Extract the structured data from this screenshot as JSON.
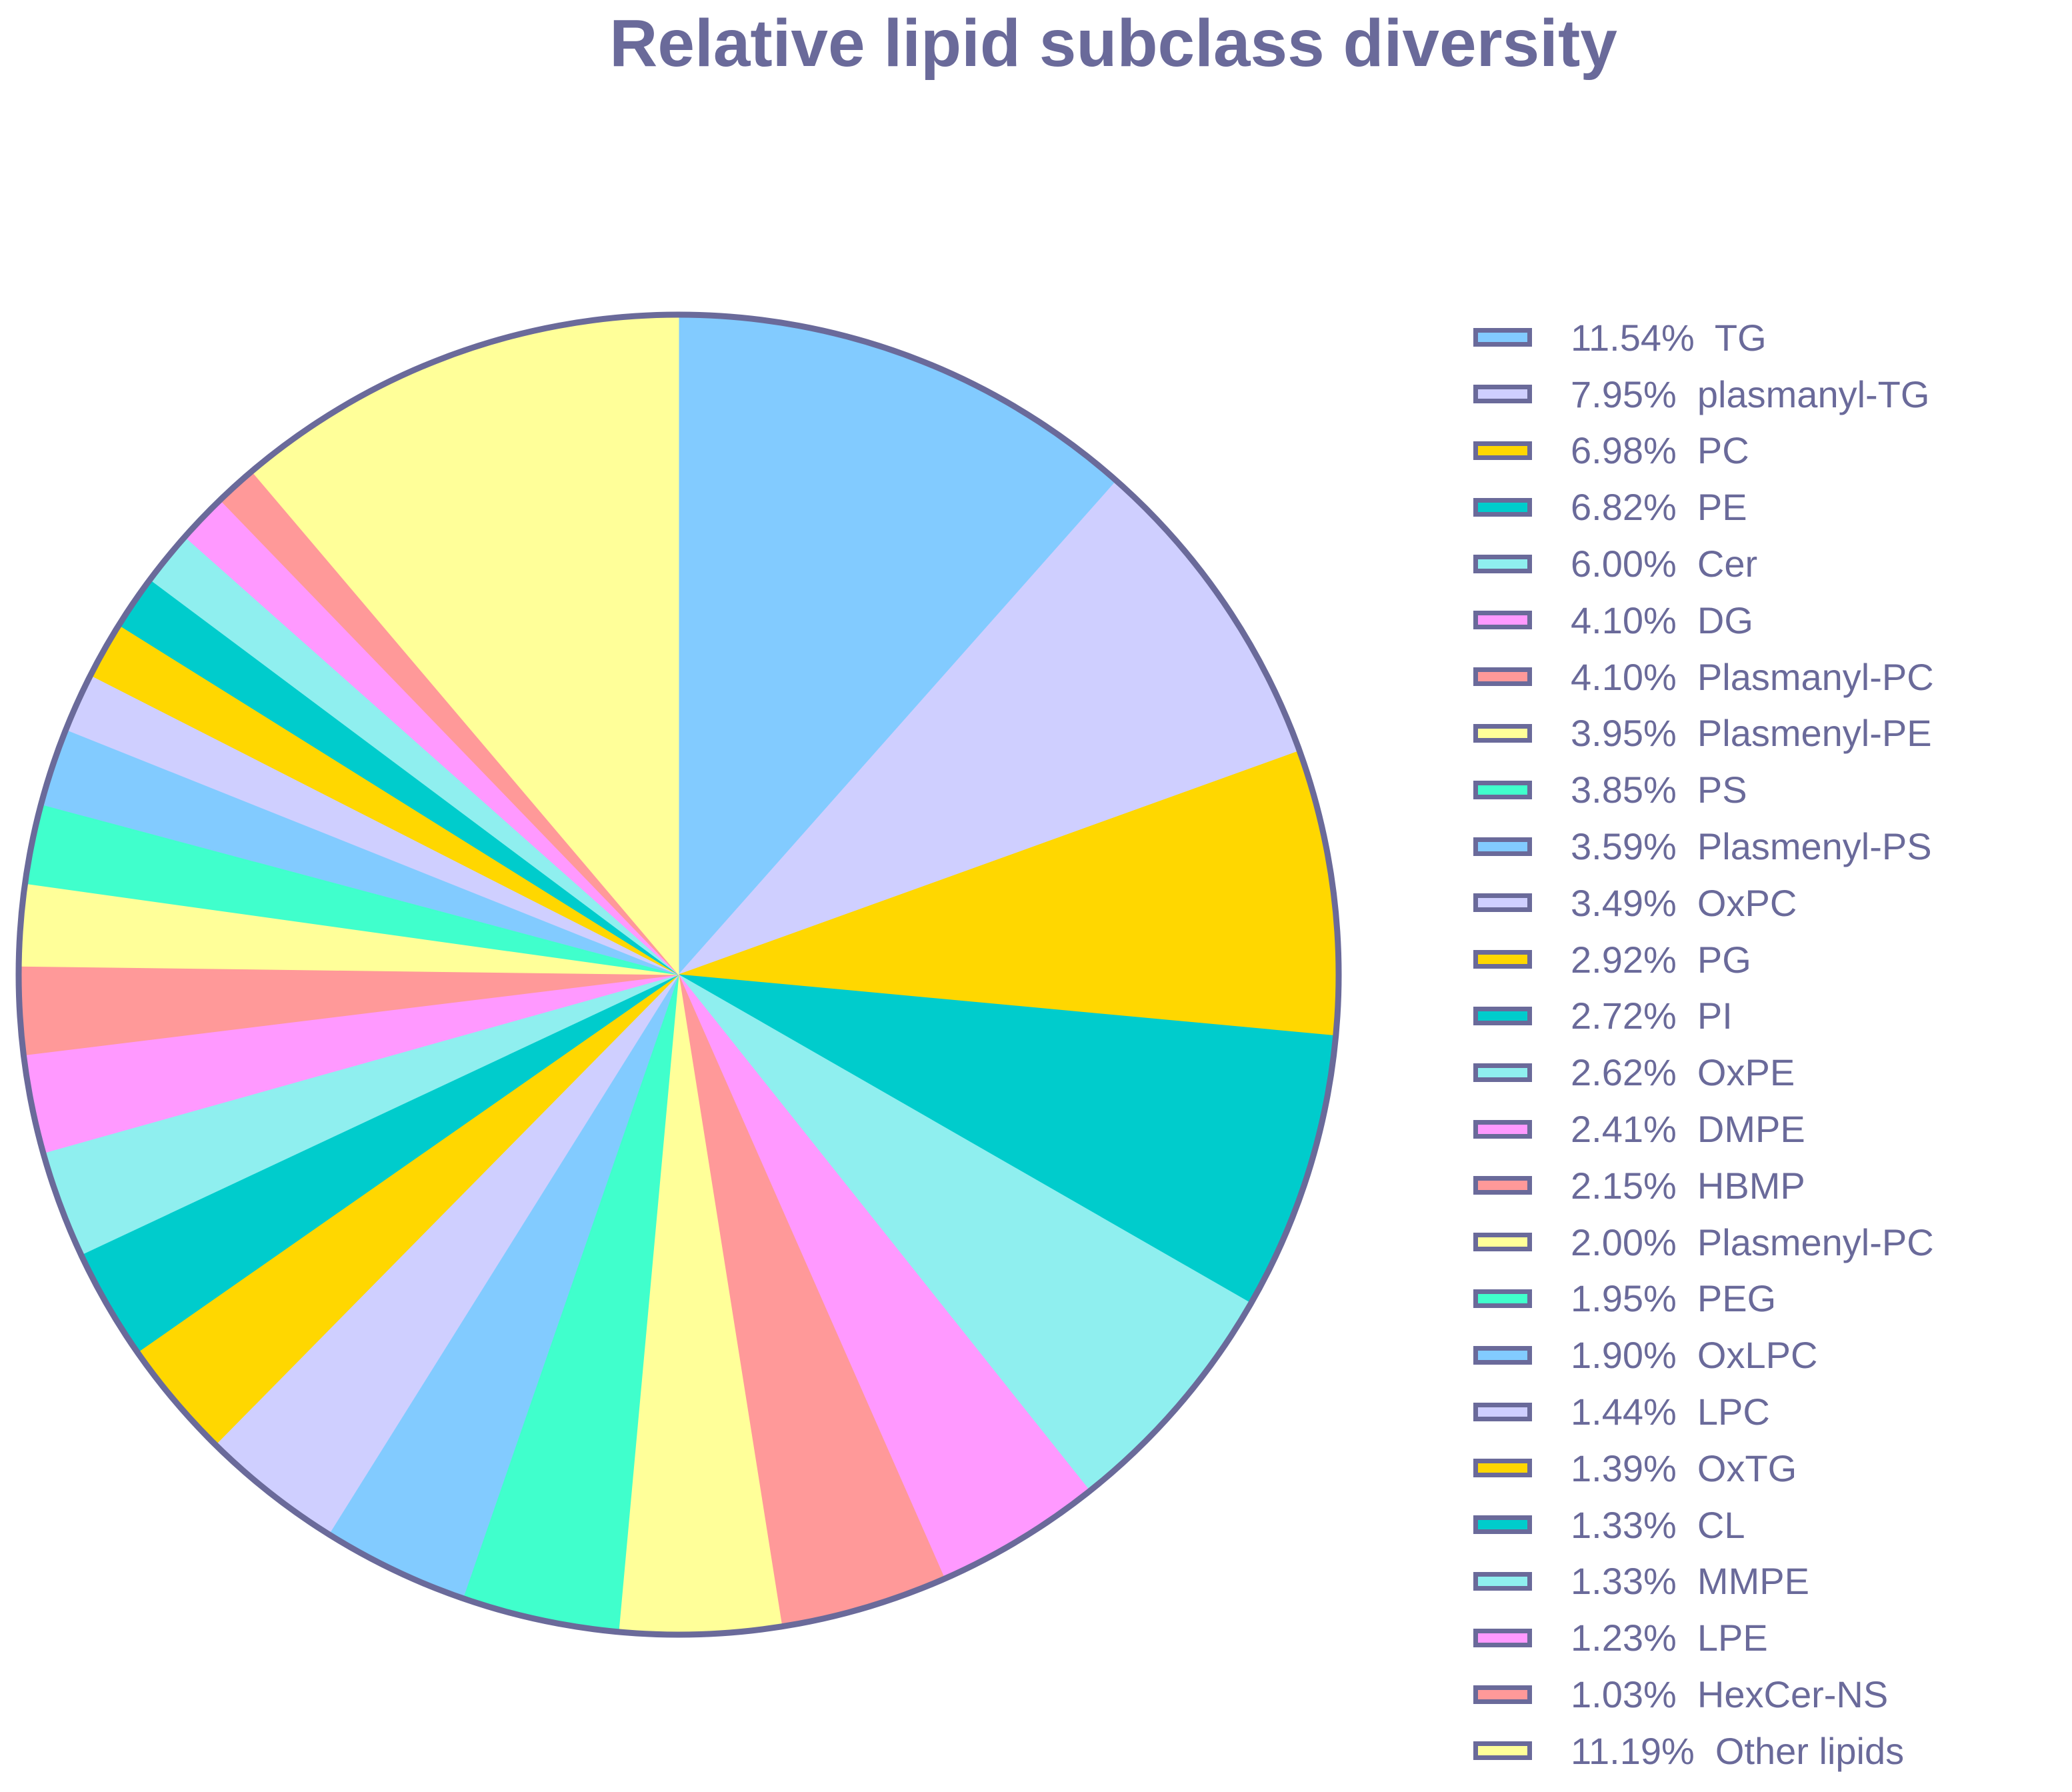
{
  "chart_data": {
    "type": "pie",
    "title": "Relative lipid subclass diversity",
    "legend_position": "right",
    "border_color": "#6a6a9a",
    "slices": [
      {
        "pct_label": "11.54%",
        "name": "TG",
        "value": 11.54,
        "color": "#82cbff"
      },
      {
        "pct_label": "7.95%",
        "name": "plasmanyl-TG",
        "value": 7.95,
        "color": "#cfcfff"
      },
      {
        "pct_label": "6.98%",
        "name": "PC",
        "value": 6.98,
        "color": "#ffd700"
      },
      {
        "pct_label": "6.82%",
        "name": "PE",
        "value": 6.82,
        "color": "#00cccc"
      },
      {
        "pct_label": "6.00%",
        "name": "Cer",
        "value": 6.0,
        "color": "#8fefef"
      },
      {
        "pct_label": "4.10%",
        "name": "DG",
        "value": 4.1,
        "color": "#ff99ff"
      },
      {
        "pct_label": "4.10%",
        "name": "Plasmanyl-PC",
        "value": 4.1,
        "color": "#ff9999"
      },
      {
        "pct_label": "3.95%",
        "name": "Plasmenyl-PE",
        "value": 3.95,
        "color": "#ffff99"
      },
      {
        "pct_label": "3.85%",
        "name": "PS",
        "value": 3.85,
        "color": "#40ffcc"
      },
      {
        "pct_label": "3.59%",
        "name": "Plasmenyl-PS",
        "value": 3.59,
        "color": "#82cbff"
      },
      {
        "pct_label": "3.49%",
        "name": "OxPC",
        "value": 3.49,
        "color": "#cfcfff"
      },
      {
        "pct_label": "2.92%",
        "name": "PG",
        "value": 2.92,
        "color": "#ffd700"
      },
      {
        "pct_label": "2.72%",
        "name": "PI",
        "value": 2.72,
        "color": "#00cccc"
      },
      {
        "pct_label": "2.62%",
        "name": "OxPE",
        "value": 2.62,
        "color": "#8fefef"
      },
      {
        "pct_label": "2.41%",
        "name": "DMPE",
        "value": 2.41,
        "color": "#ff99ff"
      },
      {
        "pct_label": "2.15%",
        "name": "HBMP",
        "value": 2.15,
        "color": "#ff9999"
      },
      {
        "pct_label": "2.00%",
        "name": "Plasmenyl-PC",
        "value": 2.0,
        "color": "#ffff99"
      },
      {
        "pct_label": "1.95%",
        "name": "PEG",
        "value": 1.95,
        "color": "#40ffcc"
      },
      {
        "pct_label": "1.90%",
        "name": "OxLPC",
        "value": 1.9,
        "color": "#82cbff"
      },
      {
        "pct_label": "1.44%",
        "name": "LPC",
        "value": 1.44,
        "color": "#cfcfff"
      },
      {
        "pct_label": "1.39%",
        "name": "OxTG",
        "value": 1.39,
        "color": "#ffd700"
      },
      {
        "pct_label": "1.33%",
        "name": "CL",
        "value": 1.33,
        "color": "#00cccc"
      },
      {
        "pct_label": "1.33%",
        "name": "MMPE",
        "value": 1.33,
        "color": "#8fefef"
      },
      {
        "pct_label": "1.23%",
        "name": "LPE",
        "value": 1.23,
        "color": "#ff99ff"
      },
      {
        "pct_label": "1.03%",
        "name": "HexCer-NS",
        "value": 1.03,
        "color": "#ff9999"
      },
      {
        "pct_label": "11.19%",
        "name": "Other lipids",
        "value": 11.19,
        "color": "#ffff99"
      }
    ]
  }
}
